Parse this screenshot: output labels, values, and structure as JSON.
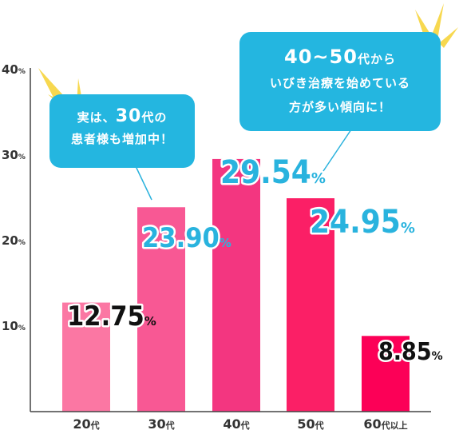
{
  "chart_data": {
    "type": "bar",
    "categories": [
      "20代",
      "30代",
      "40代",
      "50代",
      "60代以上"
    ],
    "values": [
      12.75,
      23.9,
      29.54,
      24.95,
      8.85
    ],
    "value_labels": [
      "12.75",
      "23.90",
      "29.54",
      "24.95",
      "8.85"
    ],
    "value_unit": "%",
    "y_ticks": [
      "10",
      "20",
      "30",
      "40"
    ],
    "y_tick_unit": "%",
    "ylim": [
      0,
      43
    ],
    "grid": false,
    "bar_colors": [
      "#fb77a3",
      "#f85894",
      "#f33680",
      "#fb1f66",
      "#fc0057"
    ],
    "label_colors": [
      "#111111",
      "#29b3de",
      "#29b3de",
      "#29b3de",
      "#111111"
    ]
  },
  "callouts": {
    "left": {
      "line1_big": "30",
      "line1_pre": "実は、",
      "line1_post": "代の",
      "line2": "患者様も増加中！"
    },
    "right": {
      "line1_big": "40~50",
      "line1_post": "代から",
      "line2": "いびき治療を始めている",
      "line3": "方が多い傾向に！"
    }
  },
  "colors": {
    "bubble": "#24b6e0",
    "accent_burst": "#f7d84f",
    "axis": "#444444"
  }
}
